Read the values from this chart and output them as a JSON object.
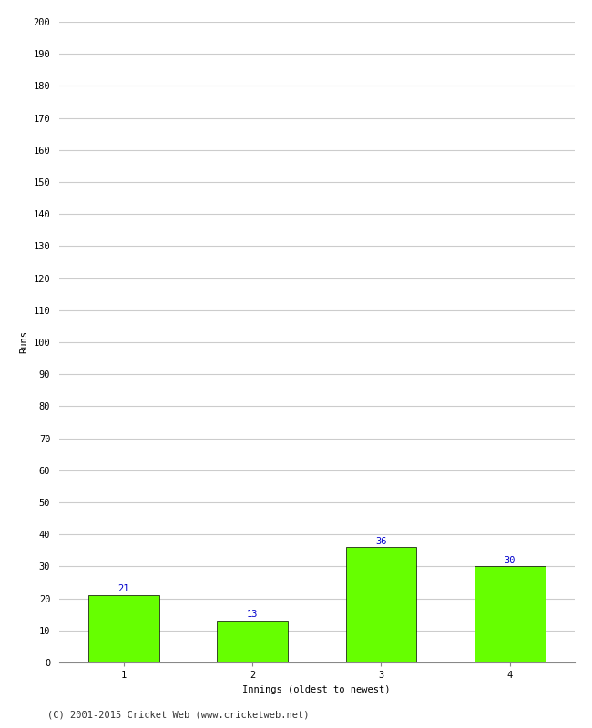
{
  "categories": [
    1,
    2,
    3,
    4
  ],
  "values": [
    21,
    13,
    36,
    30
  ],
  "bar_color": "#66ff00",
  "bar_edge_color": "#000000",
  "label_color": "#0000cc",
  "xlabel": "Innings (oldest to newest)",
  "ylabel": "Runs",
  "ylim": [
    0,
    200
  ],
  "ytick_step": 10,
  "background_color": "#ffffff",
  "grid_color": "#cccccc",
  "footer_text": "(C) 2001-2015 Cricket Web (www.cricketweb.net)",
  "bar_width": 0.55,
  "label_fontsize": 7.5,
  "axis_label_fontsize": 7.5,
  "tick_fontsize": 7.5,
  "footer_fontsize": 7.5
}
